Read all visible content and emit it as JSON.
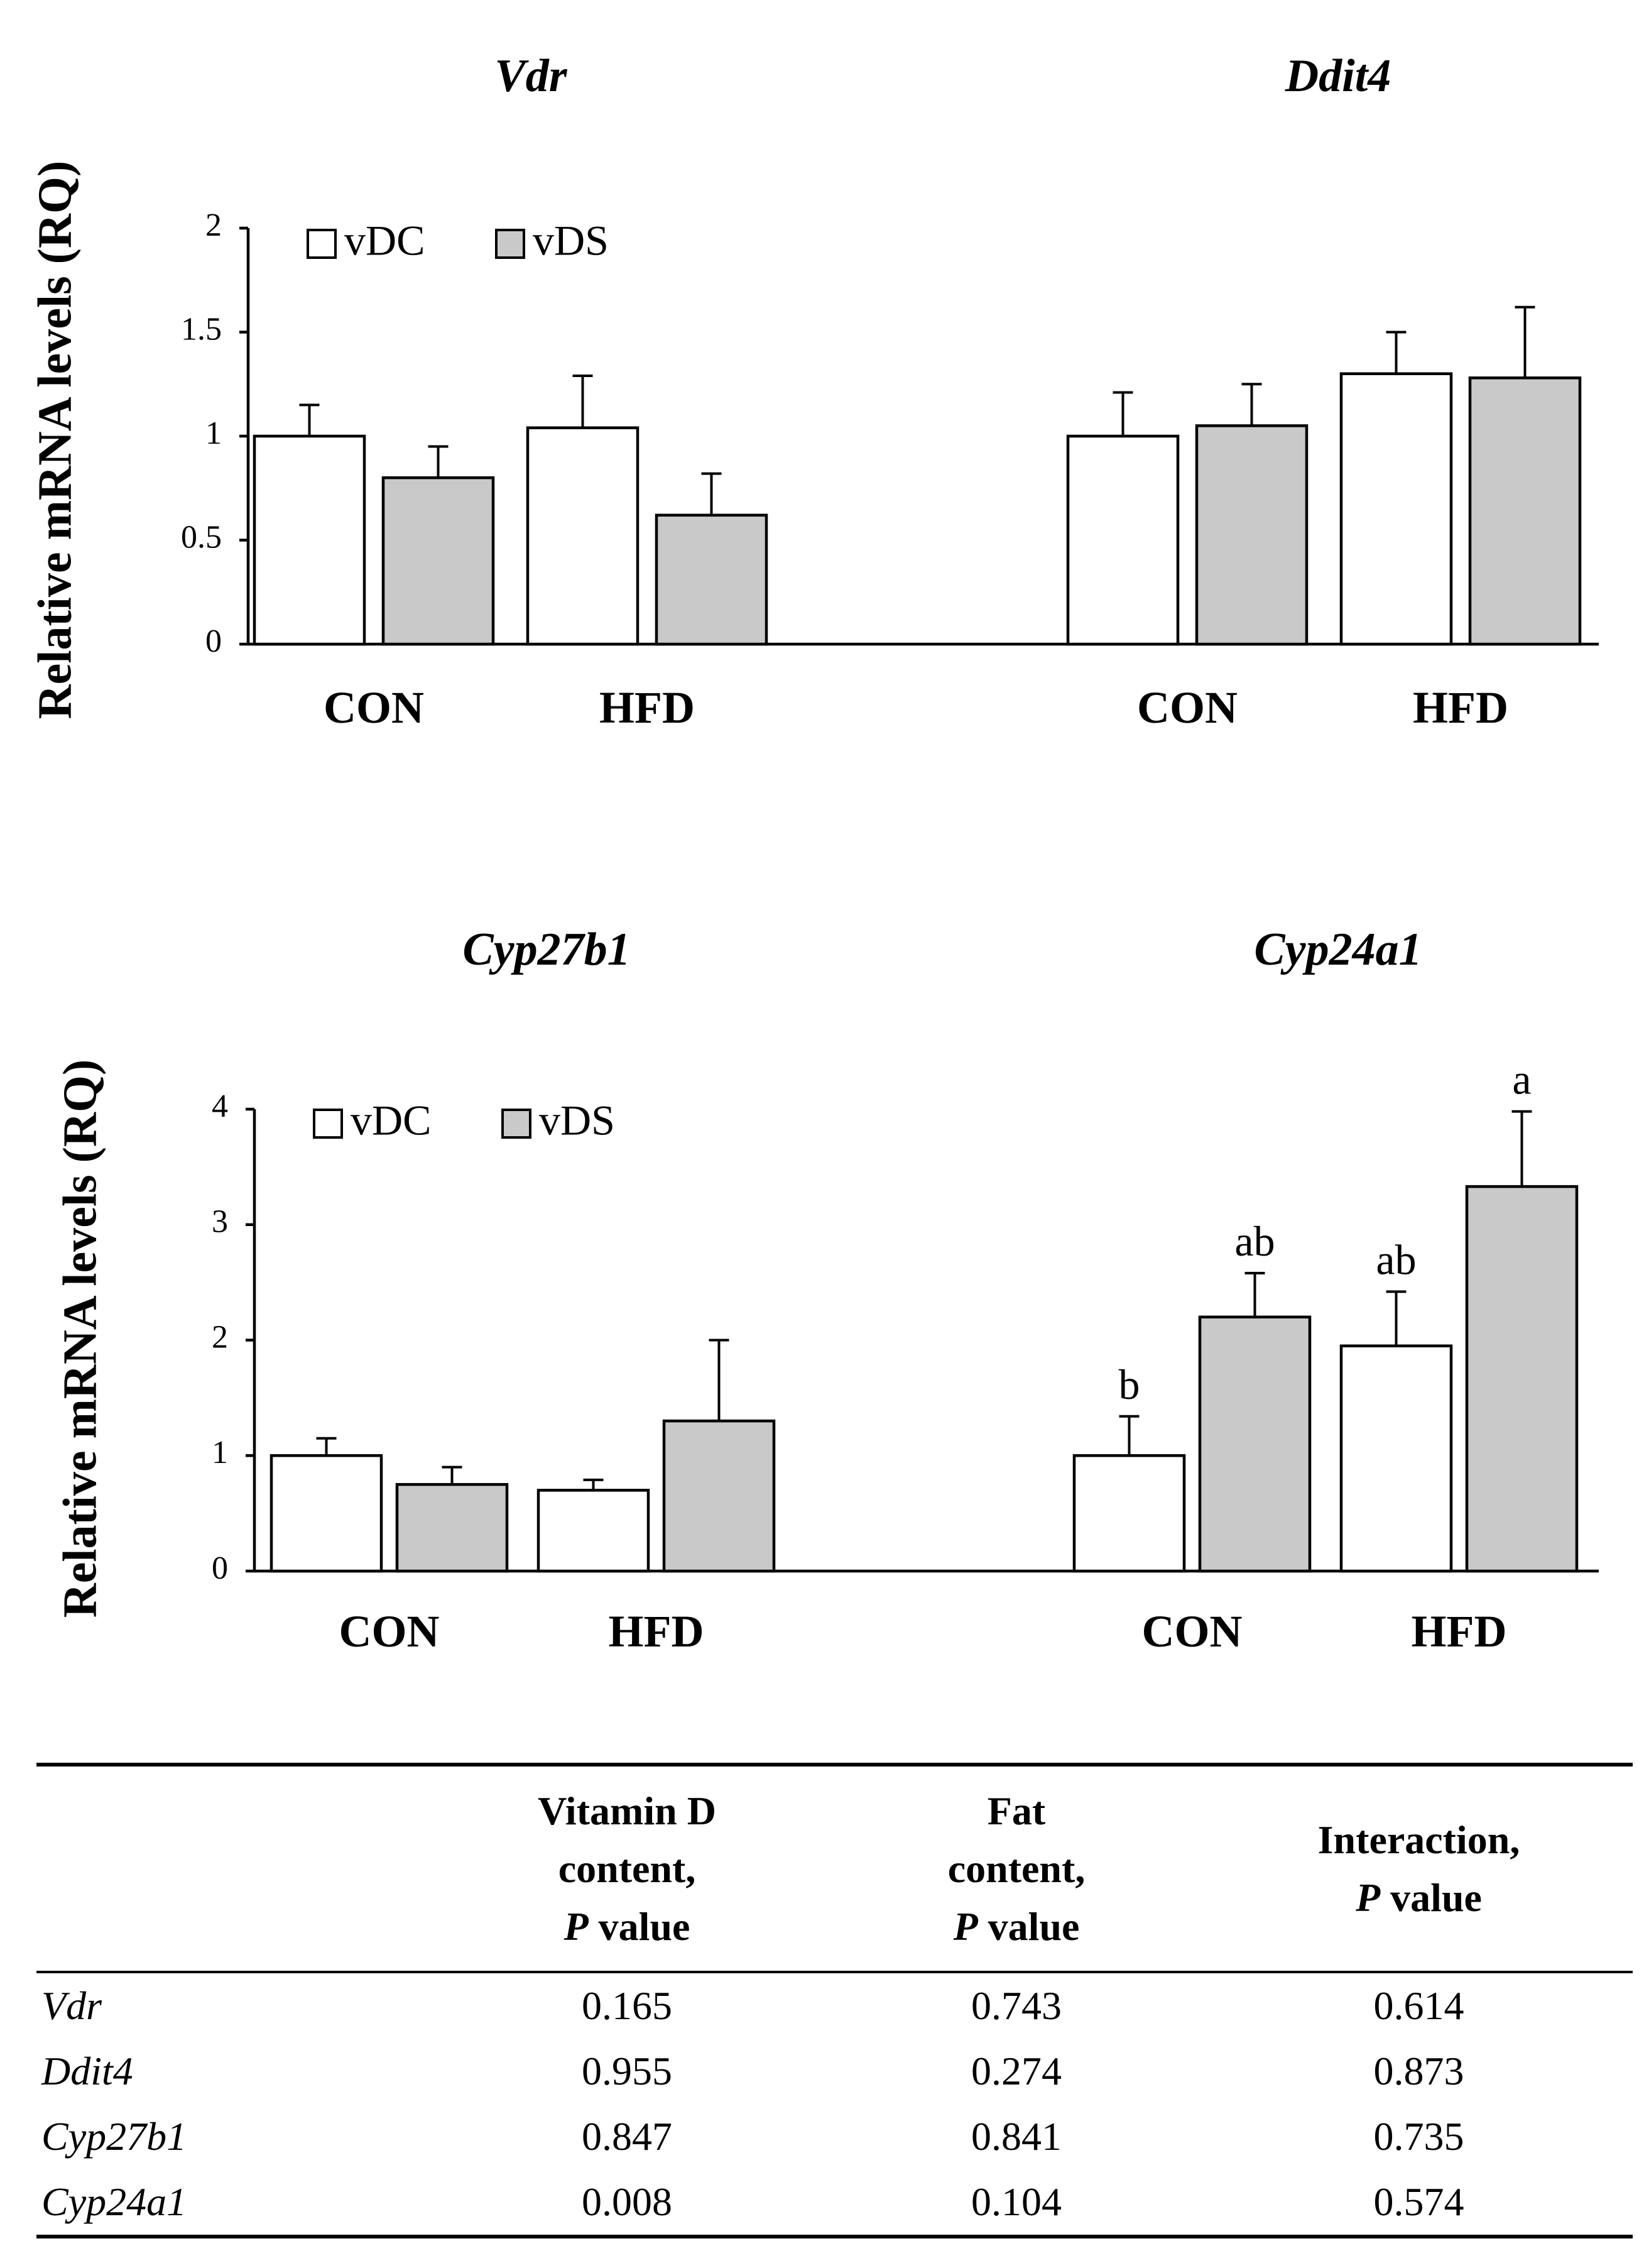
{
  "colors": {
    "vDC": "#ffffff",
    "vDS": "#c9c9c9",
    "axis": "#000000"
  },
  "y_axis_label": "Relative mRNA levels (RQ)",
  "groups": [
    "CON",
    "HFD"
  ],
  "legend": [
    "vDC",
    "vDS"
  ],
  "chart_data": [
    {
      "panel": "top",
      "type": "bar",
      "ylabel": "Relative mRNA levels (RQ)",
      "ylim": [
        0,
        2
      ],
      "yticks": [
        "0",
        "0.5",
        "1",
        "1.5",
        "2"
      ],
      "legend": [
        "vDC",
        "vDS"
      ],
      "subplots": [
        {
          "title": "Vdr",
          "categories": [
            "CON",
            "HFD"
          ],
          "series": [
            {
              "name": "vDC",
              "values": [
                1.0,
                1.04
              ],
              "errors": [
                0.15,
                0.25
              ],
              "labels": [
                "",
                ""
              ]
            },
            {
              "name": "vDS",
              "values": [
                0.8,
                0.62
              ],
              "errors": [
                0.15,
                0.2
              ],
              "labels": [
                "",
                ""
              ]
            }
          ]
        },
        {
          "title": "Ddit4",
          "categories": [
            "CON",
            "HFD"
          ],
          "series": [
            {
              "name": "vDC",
              "values": [
                1.0,
                1.3
              ],
              "errors": [
                0.21,
                0.2
              ],
              "labels": [
                "",
                ""
              ]
            },
            {
              "name": "vDS",
              "values": [
                1.05,
                1.28
              ],
              "errors": [
                0.2,
                0.34
              ],
              "labels": [
                "",
                ""
              ]
            }
          ]
        }
      ]
    },
    {
      "panel": "bottom",
      "type": "bar",
      "ylabel": "Relative mRNA levels (RQ)",
      "ylim": [
        0,
        4
      ],
      "yticks": [
        "0",
        "1",
        "2",
        "3",
        "4"
      ],
      "legend": [
        "vDC",
        "vDS"
      ],
      "subplots": [
        {
          "title": "Cyp27b1",
          "categories": [
            "CON",
            "HFD"
          ],
          "series": [
            {
              "name": "vDC",
              "values": [
                1.0,
                0.7
              ],
              "errors": [
                0.15,
                0.09
              ],
              "labels": [
                "",
                ""
              ]
            },
            {
              "name": "vDS",
              "values": [
                0.75,
                1.3
              ],
              "errors": [
                0.15,
                0.7
              ],
              "labels": [
                "",
                ""
              ]
            }
          ]
        },
        {
          "title": "Cyp24a1",
          "categories": [
            "CON",
            "HFD"
          ],
          "series": [
            {
              "name": "vDC",
              "values": [
                1.0,
                1.95
              ],
              "errors": [
                0.34,
                0.47
              ],
              "labels": [
                "b",
                "ab"
              ]
            },
            {
              "name": "vDS",
              "values": [
                2.2,
                3.33
              ],
              "errors": [
                0.38,
                0.65
              ],
              "labels": [
                "ab",
                "a"
              ]
            }
          ]
        }
      ]
    }
  ],
  "table": {
    "headers": [
      [
        ""
      ],
      [
        "Vitamin D",
        "content,",
        "P value"
      ],
      [
        "Fat",
        "content,",
        "P value"
      ],
      [
        "Interaction,",
        "P value"
      ]
    ],
    "rows": [
      {
        "gene": "Vdr",
        "values": [
          "0.165",
          "0.743",
          "0.614"
        ]
      },
      {
        "gene": "Ddit4",
        "values": [
          "0.955",
          "0.274",
          "0.873"
        ]
      },
      {
        "gene": "Cyp27b1",
        "values": [
          "0.847",
          "0.841",
          "0.735"
        ]
      },
      {
        "gene": "Cyp24a1",
        "values": [
          "0.008",
          "0.104",
          "0.574"
        ]
      }
    ]
  }
}
